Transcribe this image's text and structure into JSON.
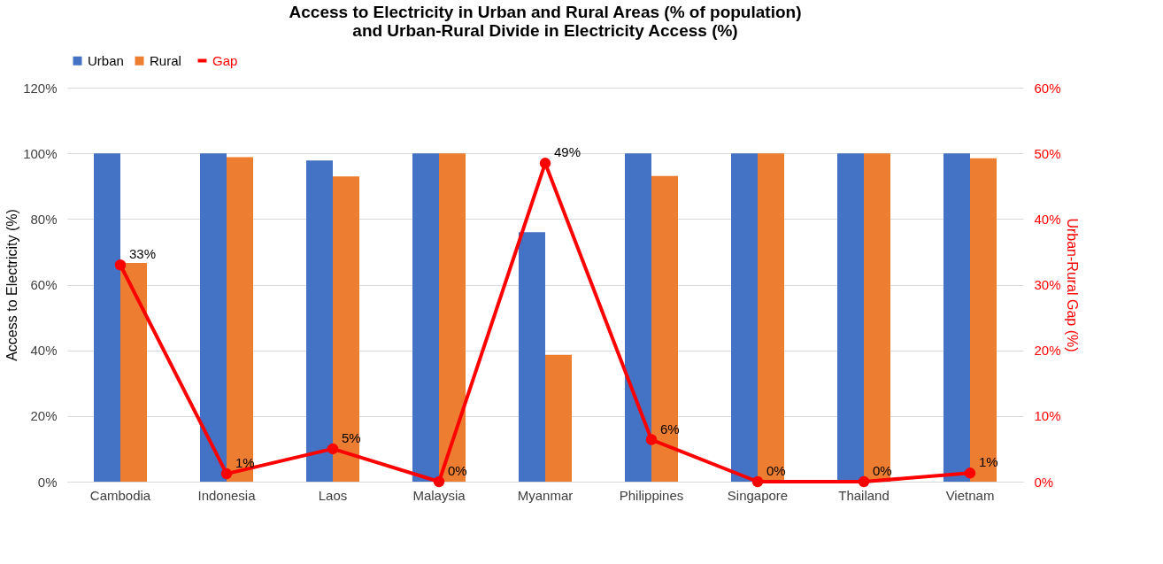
{
  "chart_data": {
    "type": "bar",
    "title": "Access to Electricity in Urban and Rural Areas (% of population)\nand Urban-Rural Divide in Electricity Access (%)",
    "categories": [
      "Cambodia",
      "Indonesia",
      "Laos",
      "Malaysia",
      "Myanmar",
      "Philippines",
      "Singapore",
      "Thailand",
      "Vietnam"
    ],
    "series": [
      {
        "name": "Urban",
        "color": "#4472c4",
        "values": [
          100,
          100,
          97.8,
          100,
          76,
          100,
          100,
          100,
          100
        ]
      },
      {
        "name": "Rural",
        "color": "#ed7d31",
        "values": [
          66.6,
          98.8,
          93,
          100,
          38.6,
          93.1,
          100,
          100,
          98.5
        ]
      },
      {
        "name": "Gap",
        "type": "line",
        "axis": "y2",
        "color": "#ff0000",
        "marker": "circle",
        "values": [
          33,
          1.2,
          5,
          0,
          48.5,
          6.4,
          0,
          0,
          1.3
        ],
        "value_labels": [
          "33%",
          "1%",
          "5%",
          "0%",
          "49%",
          "6%",
          "0%",
          "0%",
          "1%"
        ]
      }
    ],
    "ylabel": "Access to Electricity (%)",
    "y2label": "Urban-Rural Gap (%)",
    "ylim": [
      0,
      120
    ],
    "yticks": [
      {
        "value": 0,
        "label": "0%"
      },
      {
        "value": 20,
        "label": "20%"
      },
      {
        "value": 40,
        "label": "40%"
      },
      {
        "value": 60,
        "label": "60%"
      },
      {
        "value": 80,
        "label": "80%"
      },
      {
        "value": 100,
        "label": "100%"
      },
      {
        "value": 120,
        "label": "120%"
      }
    ],
    "y2lim": [
      0,
      60
    ],
    "y2ticks": [
      {
        "value": 0,
        "label": "0%"
      },
      {
        "value": 10,
        "label": "10%"
      },
      {
        "value": 20,
        "label": "20%"
      },
      {
        "value": 30,
        "label": "30%"
      },
      {
        "value": 40,
        "label": "40%"
      },
      {
        "value": 50,
        "label": "50%"
      },
      {
        "value": 60,
        "label": "60%"
      }
    ],
    "grid": "y",
    "legend": "top"
  }
}
